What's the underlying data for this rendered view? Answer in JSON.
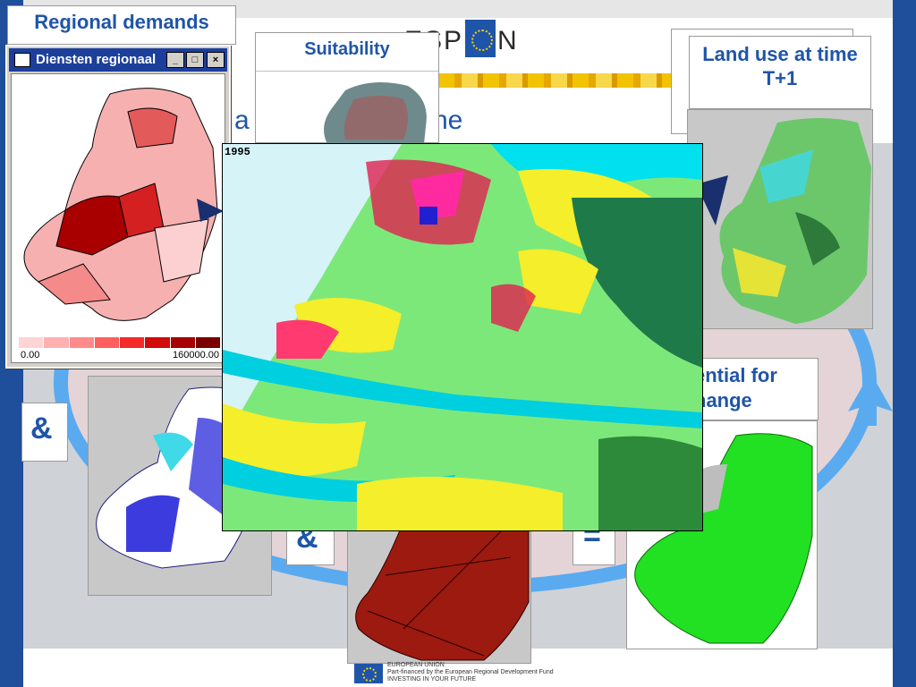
{
  "slide": {
    "logo_text_left": "ESP",
    "logo_text_right": "N",
    "heading_fragment_left": "a",
    "heading_fragment_right": "ne",
    "operator_and_1": "&",
    "operator_and_2": "&",
    "operator_equals": "="
  },
  "panels": {
    "regional_demands": {
      "title": "Regional demands"
    },
    "suitability": {
      "title": "Suitability"
    },
    "land_use": {
      "title": "Land use at time T+1"
    },
    "potential": {
      "title": "ential for hange"
    }
  },
  "window": {
    "title": "Diensten regionaal",
    "btn_minimize": "_",
    "btn_maximize": "□",
    "btn_close": "×",
    "legend_min": "0.00",
    "legend_max": "160000.00",
    "legend_colors": [
      "#ffd4d4",
      "#ffb0b0",
      "#ff8a8a",
      "#ff5f5f",
      "#f42a2a",
      "#d10a0a",
      "#a60000",
      "#7a0000"
    ]
  },
  "main_map": {
    "year": "1995"
  },
  "footer": {
    "line1": "EUROPEAN UNION",
    "line2": "Part-financed by the European Regional Development Fund",
    "line3": "INVESTING IN YOUR FUTURE"
  },
  "colors": {
    "brand_blue": "#1f55a8",
    "cycle_arrow": "#5aaaf0",
    "sidebar": "#1f4e9a"
  }
}
